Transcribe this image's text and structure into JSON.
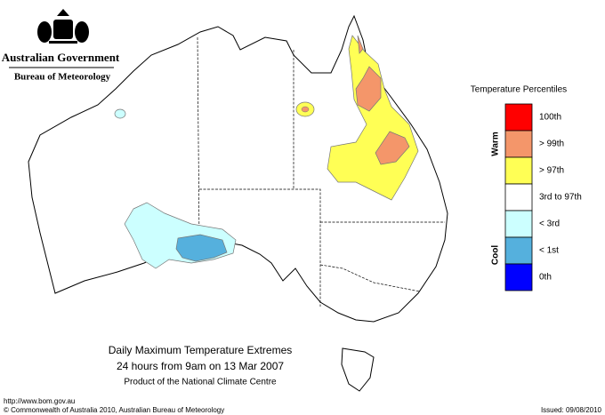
{
  "header": {
    "agency": "Australian Government",
    "bureau": "Bureau of Meteorology"
  },
  "legend": {
    "title": "Temperature Percentiles",
    "warm_label": "Warm",
    "cool_label": "Cool",
    "items": [
      {
        "label": "100th",
        "color": "#ff0000"
      },
      {
        "label": "> 99th",
        "color": "#f4966a"
      },
      {
        "label": "> 97th",
        "color": "#ffff55"
      },
      {
        "label": "3rd to 97th",
        "color": "#ffffff"
      },
      {
        "label": "< 3rd",
        "color": "#ccffff"
      },
      {
        "label": "< 1st",
        "color": "#55b0dd"
      },
      {
        "label": "0th",
        "color": "#0000ff"
      }
    ]
  },
  "map": {
    "title": "Daily Maximum Temperature Extremes",
    "subtitle": "24 hours from 9am on 13 Mar 2007",
    "credit": "Product of the National Climate Centre"
  },
  "footer": {
    "url": "http://www.bom.gov.au",
    "copyright": "© Commonwealth of Australia 2010, Australian Bureau of Meteorology",
    "issued": "Issued: 09/08/2010"
  }
}
